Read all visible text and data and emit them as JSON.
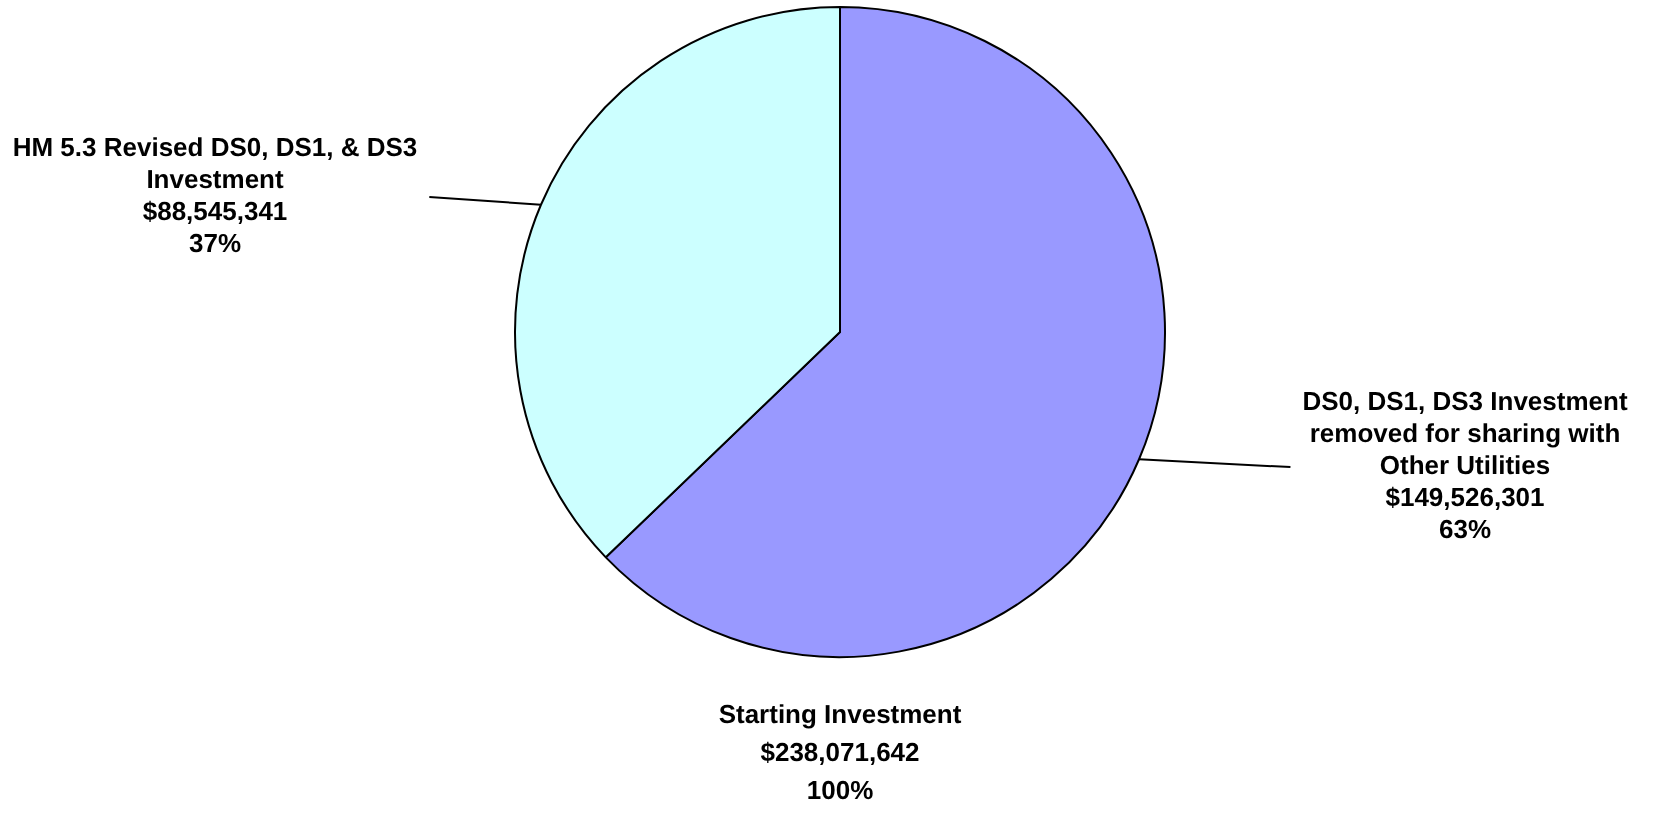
{
  "chart_data": {
    "type": "pie",
    "categories": [
      "DS0, DS1, DS3 Investment removed for sharing with Other Utilities",
      "HM 5.3 Revised DS0, DS1, & DS3 Investment"
    ],
    "values": [
      149526301,
      88545341
    ],
    "colors": [
      "#9999ff",
      "#ccffff"
    ],
    "value_labels": [
      "$149,526,301 63%",
      "$88,545,341 37%"
    ],
    "legend": false,
    "annotations": [
      "Starting Investment",
      "$238,071,642",
      "100%"
    ]
  }
}
